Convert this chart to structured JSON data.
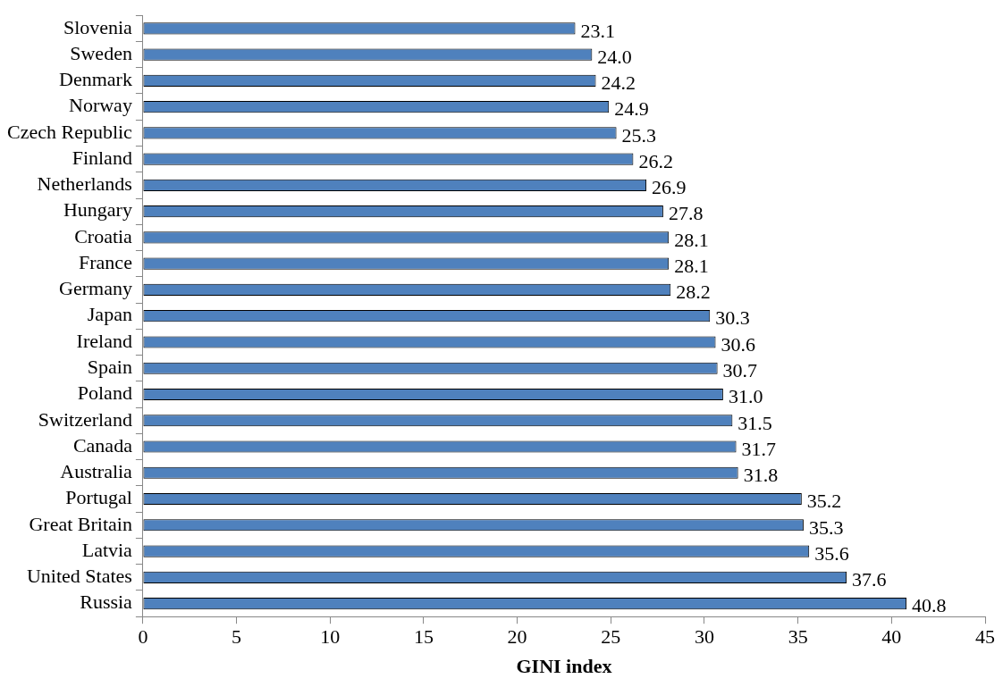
{
  "chart_data": {
    "type": "bar",
    "orientation": "horizontal",
    "xlabel": "GINI index",
    "categories": [
      "Slovenia",
      "Sweden",
      "Denmark",
      "Norway",
      "Czech Republic",
      "Finland",
      "Netherlands",
      "Hungary",
      "Croatia",
      "France",
      "Germany",
      "Japan",
      "Ireland",
      "Spain",
      "Poland",
      "Switzerland",
      "Canada",
      "Australia",
      "Portugal",
      "Great Britain",
      "Latvia",
      "United States",
      "Russia"
    ],
    "values": [
      23.1,
      24.0,
      24.2,
      24.9,
      25.3,
      26.2,
      26.9,
      27.8,
      28.1,
      28.1,
      28.2,
      30.3,
      30.6,
      30.7,
      31.0,
      31.5,
      31.7,
      31.8,
      35.2,
      35.3,
      35.6,
      37.6,
      40.8
    ],
    "value_labels": [
      "23.1",
      "24.0",
      "24.2",
      "24.9",
      "25.3",
      "26.2",
      "26.9",
      "27.8",
      "28.1",
      "28.1",
      "28.2",
      "30.3",
      "30.6",
      "30.7",
      "31.0",
      "31.5",
      "31.7",
      "31.8",
      "35.2",
      "35.3",
      "35.6",
      "37.6",
      "40.8"
    ],
    "color": "#4f81bd",
    "xlim": [
      0,
      45
    ],
    "xticks": [
      0,
      5,
      10,
      15,
      20,
      25,
      30,
      35,
      40,
      45
    ],
    "grid": false,
    "legend": false
  }
}
